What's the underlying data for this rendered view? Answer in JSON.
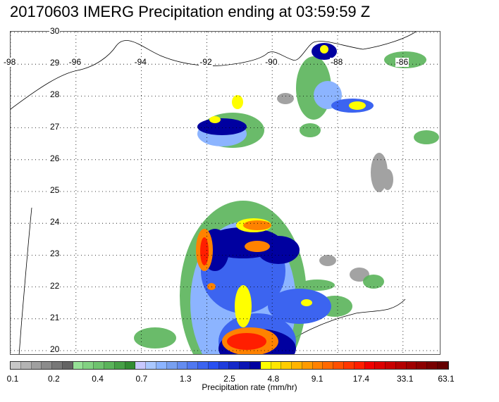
{
  "title": "20170603 IMERG Precipitation ending at 03:59:59 Z",
  "map": {
    "lat_labels": [
      "30",
      "29",
      "28",
      "27",
      "26",
      "25",
      "24",
      "23",
      "22",
      "21",
      "20"
    ],
    "lon_labels": [
      "-98",
      "-96",
      "-94",
      "-92",
      "-90",
      "-88",
      "-86"
    ],
    "lat_range": [
      20,
      30
    ],
    "lon_range": [
      -98,
      -85
    ],
    "grid": true
  },
  "colorbar": {
    "colors": [
      "#c8c8c8",
      "#b4b4b4",
      "#a0a0a0",
      "#8c8c8c",
      "#787878",
      "#646464",
      "#96e196",
      "#82d282",
      "#6ec36e",
      "#5ab45a",
      "#46a046",
      "#328c32",
      "#c8c8ff",
      "#aac8ff",
      "#8cb4ff",
      "#78a0f0",
      "#648cf0",
      "#5078f0",
      "#3c64f0",
      "#2850f0",
      "#1e3cdc",
      "#1428c8",
      "#0a14b4",
      "#0000a0",
      "#ffff00",
      "#ffe600",
      "#ffcd00",
      "#ffb400",
      "#ff9b00",
      "#ff8200",
      "#ff6900",
      "#ff5000",
      "#ff3700",
      "#ff1e00",
      "#f00000",
      "#dc0000",
      "#c80000",
      "#b40000",
      "#a00000",
      "#8c0000",
      "#780000",
      "#640000"
    ],
    "tick_labels": [
      "0.1",
      "0.2",
      "0.4",
      "0.7",
      "1.3",
      "2.5",
      "4.8",
      "9.1",
      "17.4",
      "33.1",
      "63.1"
    ],
    "label": "Precipitation rate (mm/hr)"
  }
}
